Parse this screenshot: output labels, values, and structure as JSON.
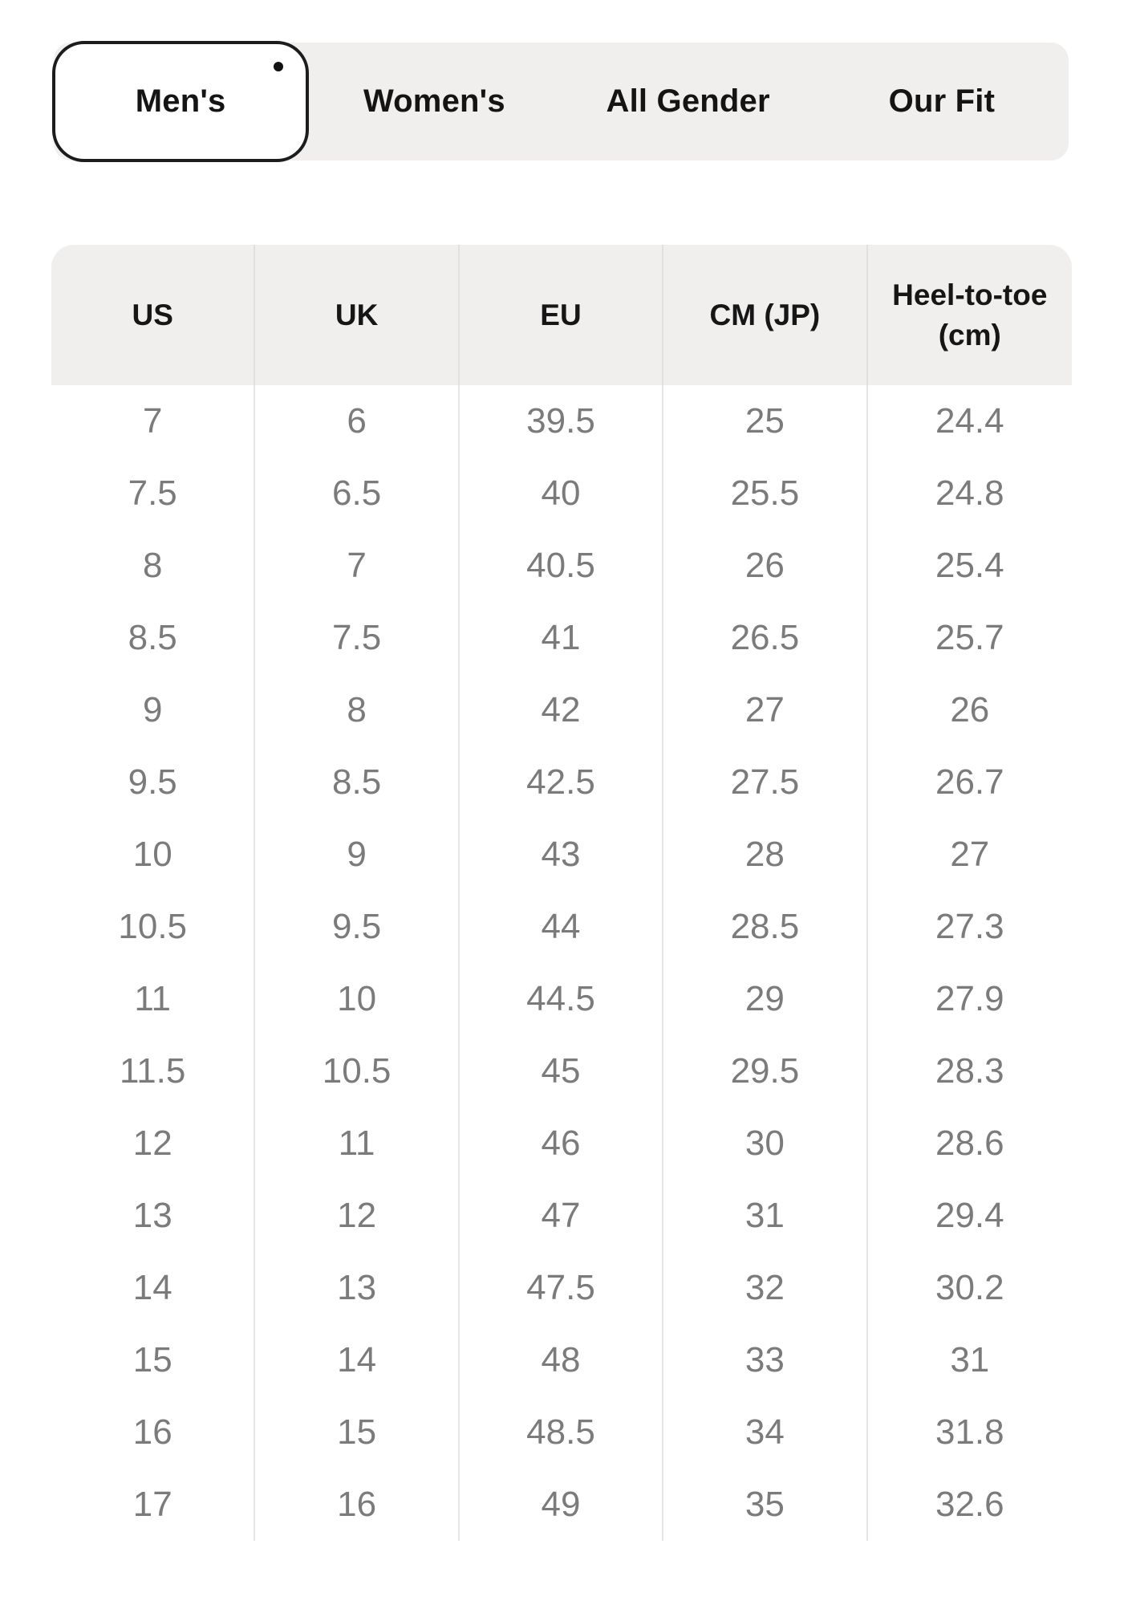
{
  "tabs": [
    {
      "label": "Men's",
      "active": true
    },
    {
      "label": "Women's",
      "active": false
    },
    {
      "label": "All Gender",
      "active": false
    },
    {
      "label": "Our Fit",
      "active": false
    }
  ],
  "table": {
    "header": {
      "us": "US",
      "uk": "UK",
      "eu": "EU",
      "cm_jp": "CM (JP)",
      "heel_line1": "Heel-to-toe",
      "heel_line2": "(cm)"
    },
    "columns": [
      "US",
      "UK",
      "EU",
      "CM (JP)",
      "Heel-to-toe (cm)"
    ],
    "rows": [
      [
        "7",
        "6",
        "39.5",
        "25",
        "24.4"
      ],
      [
        "7.5",
        "6.5",
        "40",
        "25.5",
        "24.8"
      ],
      [
        "8",
        "7",
        "40.5",
        "26",
        "25.4"
      ],
      [
        "8.5",
        "7.5",
        "41",
        "26.5",
        "25.7"
      ],
      [
        "9",
        "8",
        "42",
        "27",
        "26"
      ],
      [
        "9.5",
        "8.5",
        "42.5",
        "27.5",
        "26.7"
      ],
      [
        "10",
        "9",
        "43",
        "28",
        "27"
      ],
      [
        "10.5",
        "9.5",
        "44",
        "28.5",
        "27.3"
      ],
      [
        "11",
        "10",
        "44.5",
        "29",
        "27.9"
      ],
      [
        "11.5",
        "10.5",
        "45",
        "29.5",
        "28.3"
      ],
      [
        "12",
        "11",
        "46",
        "30",
        "28.6"
      ],
      [
        "13",
        "12",
        "47",
        "31",
        "29.4"
      ],
      [
        "14",
        "13",
        "47.5",
        "32",
        "30.2"
      ],
      [
        "15",
        "14",
        "48",
        "33",
        "31"
      ],
      [
        "16",
        "15",
        "48.5",
        "34",
        "31.8"
      ],
      [
        "17",
        "16",
        "49",
        "35",
        "32.6"
      ]
    ]
  },
  "colors": {
    "tab_bg": "#f0efee",
    "active_tab_bg": "#ffffff",
    "active_tab_border": "#1c1c1c",
    "active_tab_dot": "#111111",
    "header_bg": "#f0efee",
    "divider": "#e7e5e4",
    "data_text": "#7b7b7b",
    "label_text": "#141414"
  }
}
